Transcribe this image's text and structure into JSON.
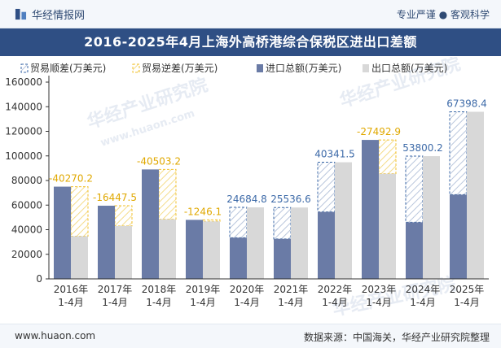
{
  "header": {
    "brand": "华经情报网",
    "slogan": "专业严谨 ● 客观科学"
  },
  "title": "2016-2025年4月上海外高桥港综合保税区进出口差额",
  "footer": {
    "url": "www.huaon.com",
    "source": "数据来源：中国海关，华经产业研究院整理"
  },
  "watermark": {
    "cn": "华经产业研究院",
    "en": "www.huaon.com"
  },
  "colors": {
    "import": "#6a7ba6",
    "export": "#d8d8d8",
    "surplus_outline": "#3d6aa8",
    "deficit_outline": "#f2c12e",
    "surplus_label": "#3d6aa8",
    "deficit_label": "#e0a800",
    "title_bg": "#2f4f84"
  },
  "chart_data": {
    "type": "bar",
    "categories": [
      "2016年\n1-4月",
      "2017年\n1-4月",
      "2018年\n1-4月",
      "2019年\n1-4月",
      "2020年\n1-4月",
      "2021年\n1-4月",
      "2022年\n1-4月",
      "2023年\n1-4月",
      "2024年\n1-4月",
      "2025年\n1-4月"
    ],
    "series": [
      {
        "name": "贸易顺差(万美元)",
        "kind": "surplus"
      },
      {
        "name": "贸易逆差(万美元)",
        "kind": "deficit"
      },
      {
        "name": "进口总额(万美元)",
        "kind": "import",
        "values": [
          75000,
          59500,
          89000,
          48000,
          33500,
          32500,
          54500,
          113000,
          46000,
          68500
        ]
      },
      {
        "name": "出口总额(万美元)",
        "kind": "export",
        "values": [
          34730,
          43052,
          48497,
          46754,
          58185,
          58037,
          94842,
          85507,
          99800,
          135898
        ]
      }
    ],
    "balance": [
      -40270.2,
      -16447.5,
      -40503.2,
      -1246.1,
      24684.8,
      25536.6,
      40341.5,
      -27492.9,
      53800.2,
      67398.4
    ],
    "balance_labels": [
      "-40270.2",
      "-16447.5",
      "-40503.2",
      "-1246.1",
      "24684.8",
      "25536.6",
      "40341.5",
      "-27492.9",
      "53800.2",
      "67398.4"
    ],
    "ylim": [
      0,
      160000
    ],
    "yticks": [
      0,
      20000,
      40000,
      60000,
      80000,
      100000,
      120000,
      140000,
      160000
    ],
    "legend_position": "top-left",
    "grid": false
  }
}
